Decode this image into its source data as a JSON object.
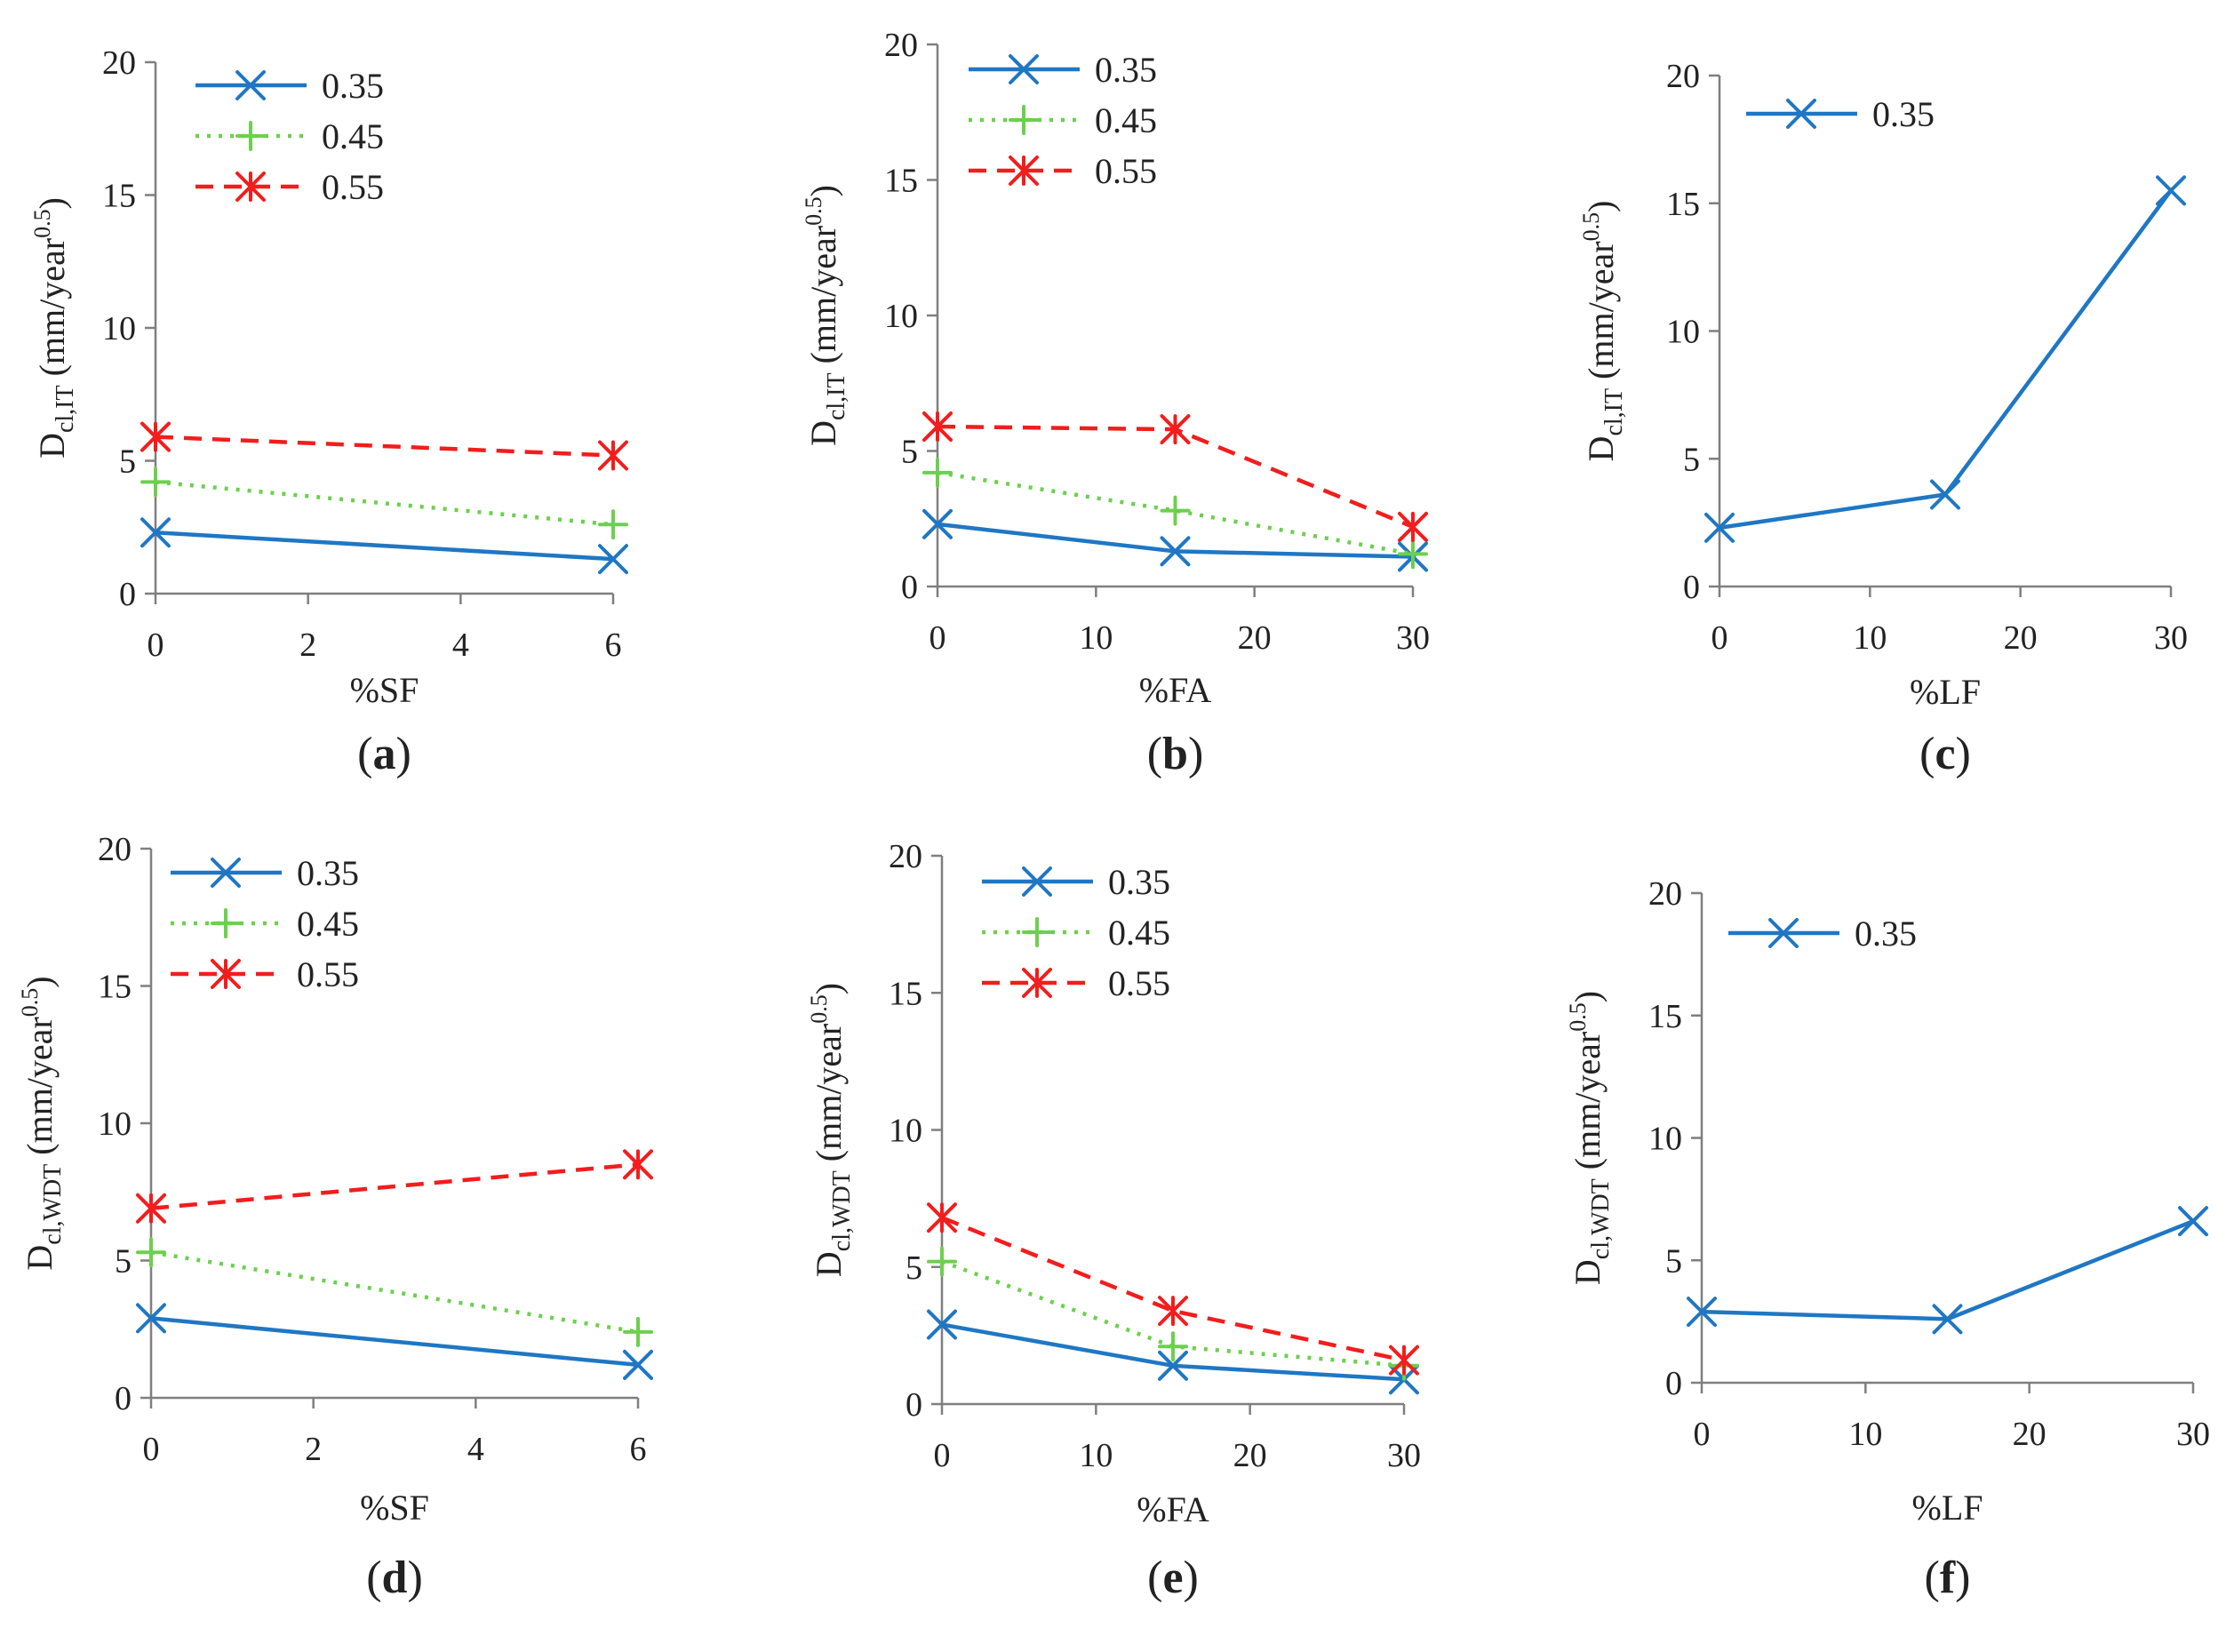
{
  "chart_data": [
    {
      "id": "a",
      "type": "line",
      "panel_label": {
        "open": "(",
        "letter": "a",
        "close": ")"
      },
      "xlabel": "%SF",
      "ylabel": {
        "main": "D",
        "sub": "cl,IT",
        "unit": " (mm/year",
        "sup": "0.5",
        "close": ")"
      },
      "xlim": [
        0,
        6
      ],
      "ylim": [
        0,
        20
      ],
      "xticks": [
        0,
        2,
        4,
        6
      ],
      "yticks": [
        0,
        5,
        10,
        15,
        20
      ],
      "legend_position": "top-left",
      "series": [
        {
          "name": "0.35",
          "x": [
            0,
            6
          ],
          "y": [
            2.3,
            1.3
          ],
          "color": "#1f77c4",
          "marker": "x",
          "dash": "solid"
        },
        {
          "name": "0.45",
          "x": [
            0,
            6
          ],
          "y": [
            4.2,
            2.6
          ],
          "color": "#6cd04e",
          "marker": "+",
          "dash": "dotted"
        },
        {
          "name": "0.55",
          "x": [
            0,
            6
          ],
          "y": [
            5.9,
            5.2
          ],
          "color": "#f21d1d",
          "marker": "asterisk",
          "dash": "dashed"
        }
      ]
    },
    {
      "id": "b",
      "type": "line",
      "panel_label": {
        "open": "(",
        "letter": "b",
        "close": ")"
      },
      "xlabel": "%FA",
      "ylabel": {
        "main": "D",
        "sub": "cl,IT",
        "unit": " (mm/year",
        "sup": "0.5",
        "close": ")"
      },
      "xlim": [
        0,
        30
      ],
      "ylim": [
        0,
        20
      ],
      "xticks": [
        0,
        10,
        20,
        30
      ],
      "yticks": [
        0,
        5,
        10,
        15,
        20
      ],
      "legend_position": "top-left",
      "series": [
        {
          "name": "0.35",
          "x": [
            0,
            15,
            30
          ],
          "y": [
            2.3,
            1.3,
            1.1
          ],
          "color": "#1f77c4",
          "marker": "x",
          "dash": "solid"
        },
        {
          "name": "0.45",
          "x": [
            0,
            15,
            30
          ],
          "y": [
            4.2,
            2.8,
            1.2
          ],
          "color": "#6cd04e",
          "marker": "+",
          "dash": "dotted"
        },
        {
          "name": "0.55",
          "x": [
            0,
            15,
            30
          ],
          "y": [
            5.9,
            5.8,
            2.2
          ],
          "color": "#f21d1d",
          "marker": "asterisk",
          "dash": "dashed"
        }
      ]
    },
    {
      "id": "c",
      "type": "line",
      "panel_label": {
        "open": "(",
        "letter": "c",
        "close": ")"
      },
      "xlabel": "%LF",
      "ylabel": {
        "main": "D",
        "sub": "cl,IT",
        "unit": " (mm/year",
        "sup": "0.5",
        "close": ")"
      },
      "xlim": [
        0,
        30
      ],
      "ylim": [
        0,
        20
      ],
      "xticks": [
        0,
        10,
        20,
        30
      ],
      "yticks": [
        0,
        5,
        10,
        15,
        20
      ],
      "legend_position": "top-left",
      "series": [
        {
          "name": "0.35",
          "x": [
            0,
            15,
            30
          ],
          "y": [
            2.3,
            3.6,
            15.5
          ],
          "color": "#1f77c4",
          "marker": "x",
          "dash": "solid"
        }
      ]
    },
    {
      "id": "d",
      "type": "line",
      "panel_label": {
        "open": "(",
        "letter": "d",
        "close": ")"
      },
      "xlabel": "%SF",
      "ylabel": {
        "main": "D",
        "sub": "cl,WDT",
        "unit": " (mm/year",
        "sup": "0.5",
        "close": ")"
      },
      "xlim": [
        0,
        6
      ],
      "ylim": [
        0,
        20
      ],
      "xticks": [
        0,
        2,
        4,
        6
      ],
      "yticks": [
        0,
        5,
        10,
        15,
        20
      ],
      "legend_position": "top-left",
      "series": [
        {
          "name": "0.35",
          "x": [
            0,
            6
          ],
          "y": [
            2.9,
            1.2
          ],
          "color": "#1f77c4",
          "marker": "x",
          "dash": "solid"
        },
        {
          "name": "0.45",
          "x": [
            0,
            6
          ],
          "y": [
            5.3,
            2.4
          ],
          "color": "#6cd04e",
          "marker": "+",
          "dash": "dotted"
        },
        {
          "name": "0.55",
          "x": [
            0,
            6
          ],
          "y": [
            6.9,
            8.5
          ],
          "color": "#f21d1d",
          "marker": "asterisk",
          "dash": "dashed"
        }
      ]
    },
    {
      "id": "e",
      "type": "line",
      "panel_label": {
        "open": "(",
        "letter": "e",
        "close": ")"
      },
      "xlabel": "%FA",
      "ylabel": {
        "main": "D",
        "sub": "cl,WDT",
        "unit": " (mm/year",
        "sup": "0.5",
        "close": ")"
      },
      "xlim": [
        0,
        30
      ],
      "ylim": [
        0,
        20
      ],
      "xticks": [
        0,
        10,
        20,
        30
      ],
      "yticks": [
        0,
        5,
        10,
        15,
        20
      ],
      "legend_position": "top-left",
      "series": [
        {
          "name": "0.35",
          "x": [
            0,
            15,
            30
          ],
          "y": [
            2.9,
            1.4,
            0.9
          ],
          "color": "#1f77c4",
          "marker": "x",
          "dash": "solid"
        },
        {
          "name": "0.45",
          "x": [
            0,
            15,
            30
          ],
          "y": [
            5.2,
            2.1,
            1.4
          ],
          "color": "#6cd04e",
          "marker": "+",
          "dash": "dotted"
        },
        {
          "name": "0.55",
          "x": [
            0,
            15,
            30
          ],
          "y": [
            6.8,
            3.4,
            1.6
          ],
          "color": "#f21d1d",
          "marker": "asterisk",
          "dash": "dashed"
        }
      ]
    },
    {
      "id": "f",
      "type": "line",
      "panel_label": {
        "open": "(",
        "letter": "f",
        "close": ")"
      },
      "xlabel": "%LF",
      "ylabel": {
        "main": "D",
        "sub": "cl,WDT",
        "unit": " (mm/year",
        "sup": "0.5",
        "close": ")"
      },
      "xlim": [
        0,
        30
      ],
      "ylim": [
        0,
        20
      ],
      "xticks": [
        0,
        10,
        20,
        30
      ],
      "yticks": [
        0,
        5,
        10,
        15,
        20
      ],
      "legend_position": "top-left",
      "series": [
        {
          "name": "0.35",
          "x": [
            0,
            15,
            30
          ],
          "y": [
            2.9,
            2.6,
            6.6
          ],
          "color": "#1f77c4",
          "marker": "x",
          "dash": "solid"
        }
      ]
    }
  ]
}
